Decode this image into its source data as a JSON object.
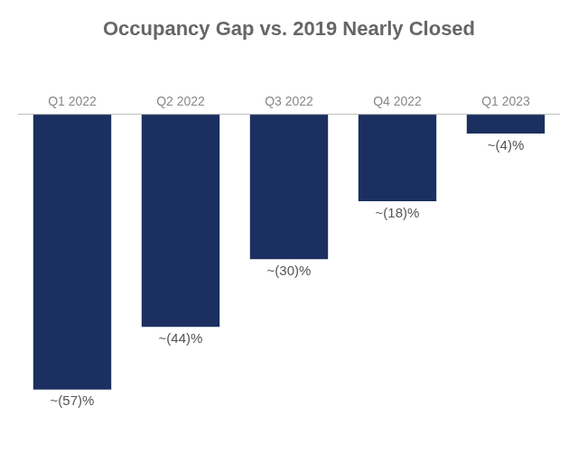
{
  "chart_data": {
    "type": "bar",
    "title": "Occupancy Gap vs. 2019 Nearly Closed",
    "categories": [
      "Q1 2022",
      "Q2 2022",
      "Q3 2022",
      "Q4 2022",
      "Q1 2023"
    ],
    "values": [
      -57,
      -44,
      -30,
      -18,
      -4
    ],
    "value_labels": [
      "~(57)%",
      "~(44)%",
      "~(30)%",
      "~(18)%",
      "~(4)%"
    ],
    "data_labels": true,
    "color": "#1b3060",
    "ylim": [
      -72,
      12
    ],
    "grid": false,
    "tick_labels": false
  }
}
